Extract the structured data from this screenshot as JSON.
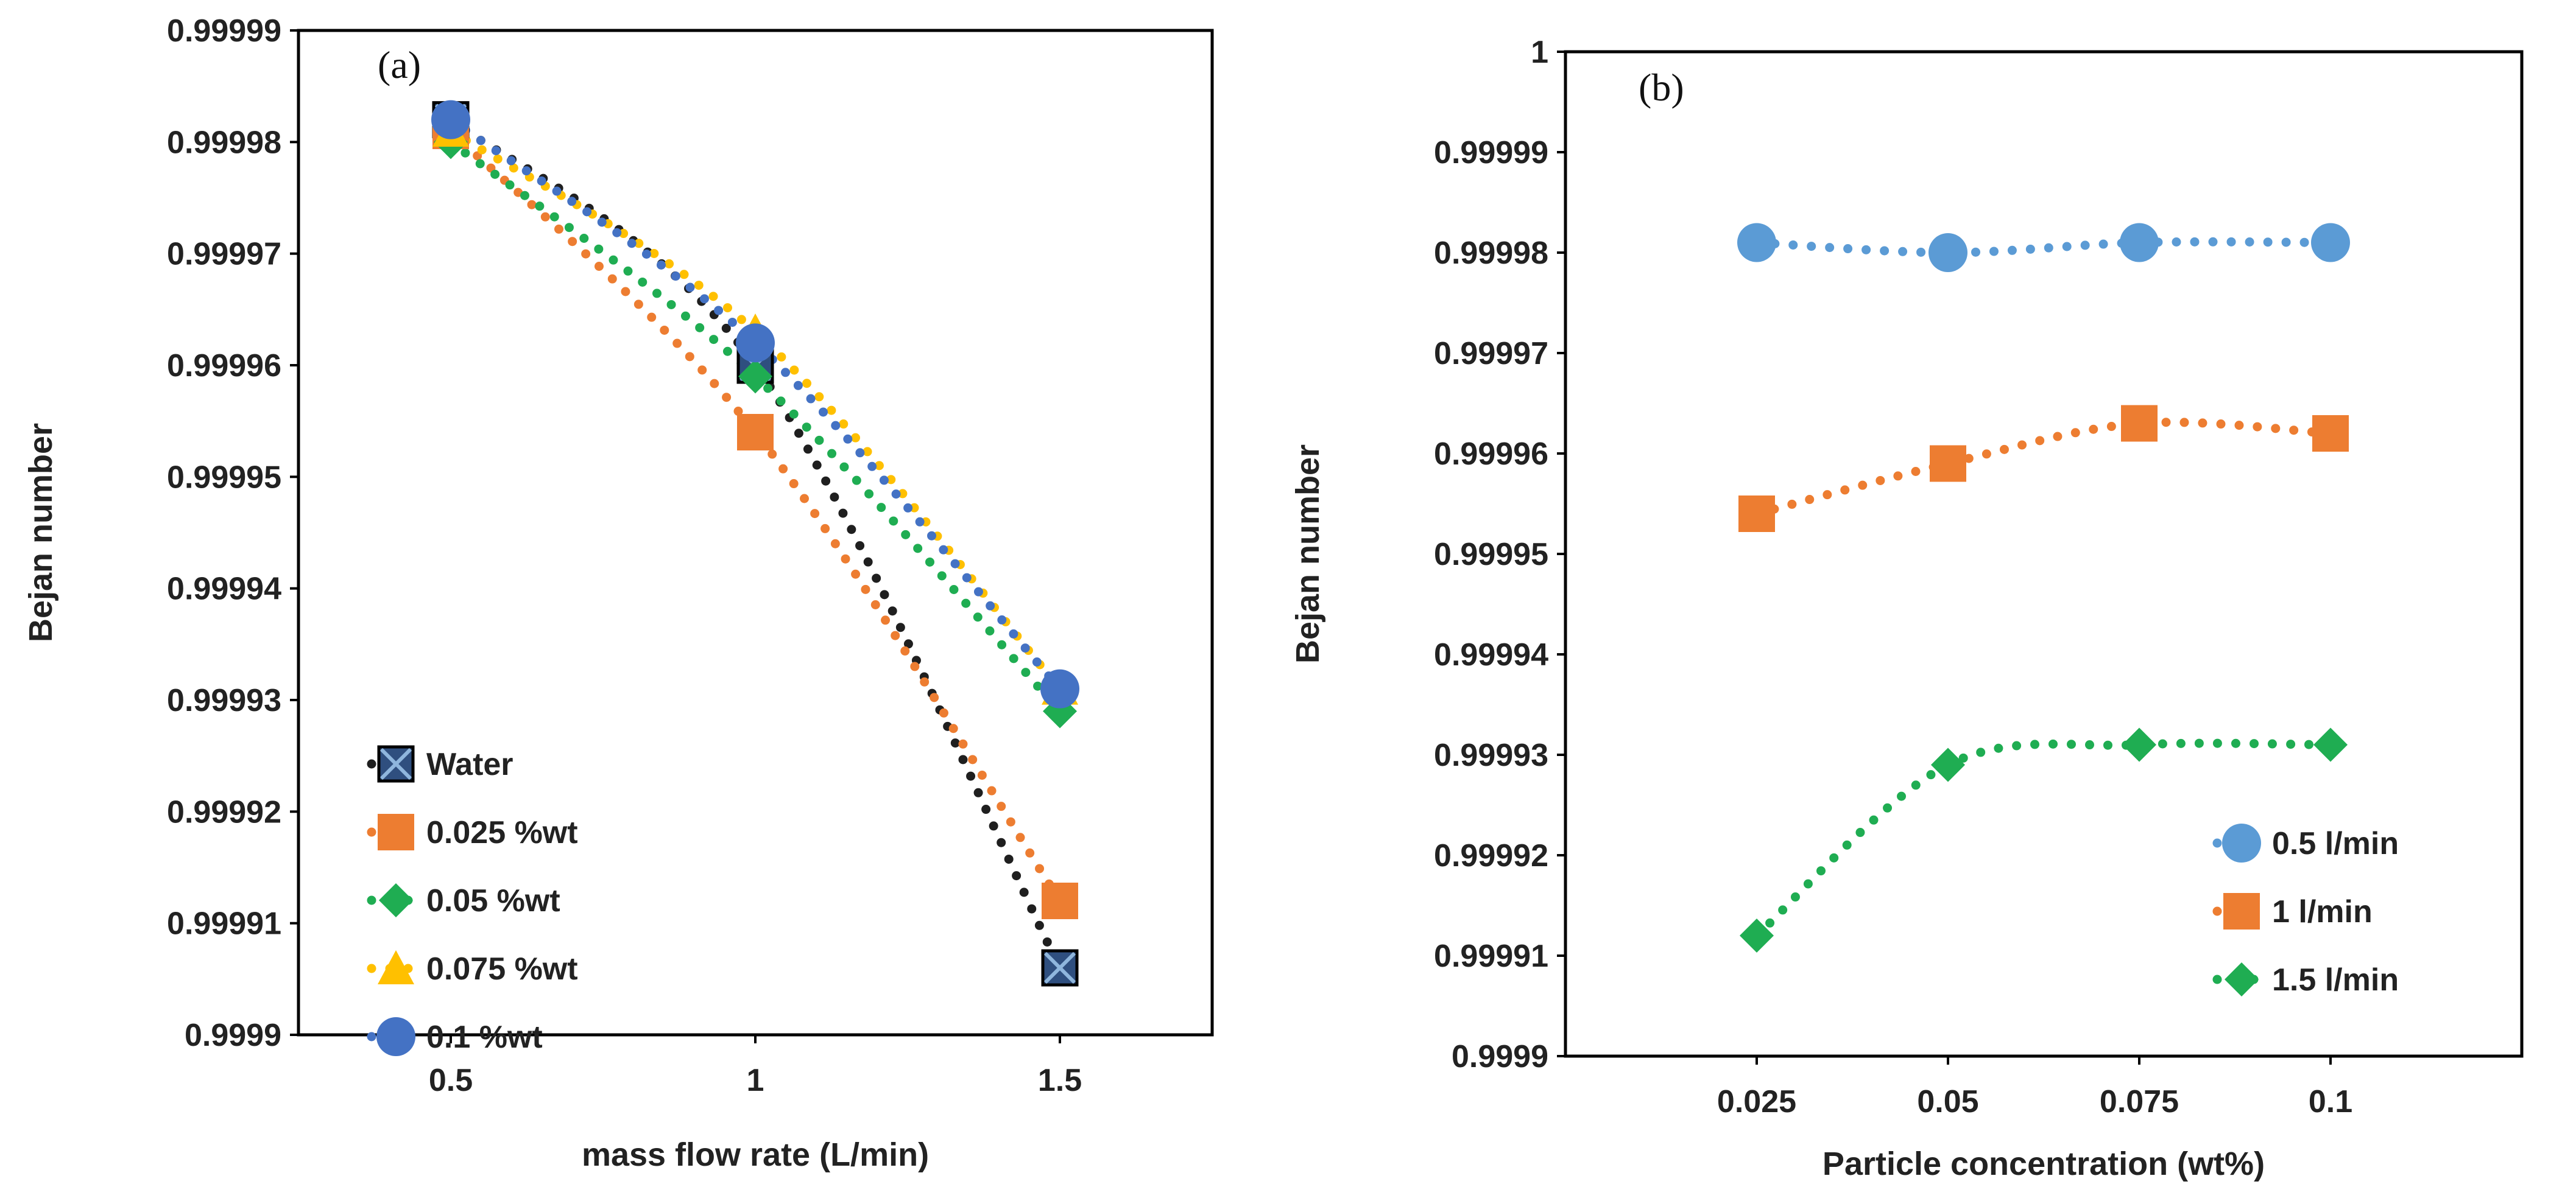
{
  "chart_data": [
    {
      "type": "line",
      "panel_label": "(a)",
      "xlabel": "mass flow rate (L/min)",
      "ylabel": "Bejan number",
      "xlim": [
        0.25,
        1.75
      ],
      "ylim": [
        0.9999,
        0.99999
      ],
      "x_ticks": [
        0.5,
        1,
        1.5
      ],
      "x_tick_labels": [
        "0.5",
        "1",
        "1.5"
      ],
      "y_ticks": [
        0.9999,
        0.99991,
        0.99992,
        0.99993,
        0.99994,
        0.99995,
        0.99996,
        0.99997,
        0.99998,
        0.99999
      ],
      "y_tick_labels": [
        "0.9999",
        "0.99991",
        "0.99992",
        "0.99993",
        "0.99994",
        "0.99995",
        "0.99996",
        "0.99997",
        "0.99998",
        "0.99999"
      ],
      "legend_position": "lower-left",
      "series": [
        {
          "name": "Water",
          "marker": "square-x",
          "color": "#1f1f1f",
          "marker_color": "#2f4f7f",
          "x": [
            0.5,
            1,
            1.5
          ],
          "values": [
            0.999982,
            0.99996,
            0.999906
          ]
        },
        {
          "name": "0.025 %wt",
          "marker": "square",
          "color": "#ed7d31",
          "marker_color": "#ed7d31",
          "x": [
            0.5,
            1,
            1.5
          ],
          "values": [
            0.999981,
            0.999954,
            0.999912
          ]
        },
        {
          "name": "0.05 %wt",
          "marker": "diamond",
          "color": "#1fad52",
          "marker_color": "#1fad52",
          "x": [
            0.5,
            1,
            1.5
          ],
          "values": [
            0.99998,
            0.999959,
            0.999929
          ]
        },
        {
          "name": "0.075 %wt",
          "marker": "triangle",
          "color": "#ffc000",
          "marker_color": "#ffc000",
          "x": [
            0.5,
            1,
            1.5
          ],
          "values": [
            0.999981,
            0.999963,
            0.999931
          ]
        },
        {
          "name": "0.1 %wt",
          "marker": "circle",
          "color": "#4472c4",
          "marker_color": "#4472c4",
          "x": [
            0.5,
            1,
            1.5
          ],
          "values": [
            0.999982,
            0.999962,
            0.999931
          ]
        }
      ]
    },
    {
      "type": "line",
      "panel_label": "(b)",
      "xlabel": "Particle concentration (wt%)",
      "ylabel": "Bejan number",
      "xlim": [
        0.0,
        0.125
      ],
      "ylim": [
        0.9999,
        1.0
      ],
      "x_ticks": [
        0.025,
        0.05,
        0.075,
        0.1
      ],
      "x_tick_labels": [
        "0.025",
        "0.05",
        "0.075",
        "0.1"
      ],
      "y_ticks": [
        0.9999,
        0.99991,
        0.99992,
        0.99993,
        0.99994,
        0.99995,
        0.99996,
        0.99997,
        0.99998,
        0.99999,
        1.0
      ],
      "y_tick_labels": [
        "0.9999",
        "0.99991",
        "0.99992",
        "0.99993",
        "0.99994",
        "0.99995",
        "0.99996",
        "0.99997",
        "0.99998",
        "0.99999",
        "1"
      ],
      "legend_position": "lower-right",
      "series": [
        {
          "name": "0.5 l/min",
          "marker": "circle",
          "color": "#5b9bd5",
          "marker_color": "#5b9bd5",
          "x": [
            0.025,
            0.05,
            0.075,
            0.1
          ],
          "values": [
            0.999981,
            0.99998,
            0.999981,
            0.999981
          ]
        },
        {
          "name": "1 l/min",
          "marker": "square",
          "color": "#ed7d31",
          "marker_color": "#ed7d31",
          "x": [
            0.025,
            0.05,
            0.075,
            0.1
          ],
          "values": [
            0.999954,
            0.999959,
            0.999963,
            0.999962
          ]
        },
        {
          "name": "1.5 l/min",
          "marker": "diamond",
          "color": "#1fad52",
          "marker_color": "#1fad52",
          "x": [
            0.025,
            0.05,
            0.075,
            0.1
          ],
          "values": [
            0.999912,
            0.999929,
            0.999931,
            0.999931
          ]
        }
      ]
    }
  ]
}
